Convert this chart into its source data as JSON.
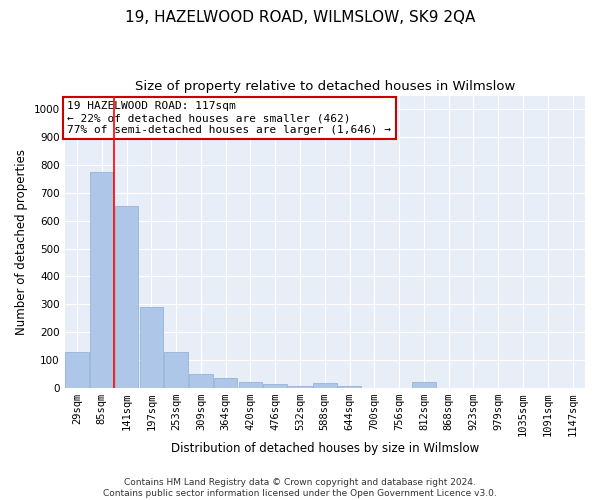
{
  "title": "19, HAZELWOOD ROAD, WILMSLOW, SK9 2QA",
  "subtitle": "Size of property relative to detached houses in Wilmslow",
  "xlabel": "Distribution of detached houses by size in Wilmslow",
  "ylabel": "Number of detached properties",
  "bar_color": "#aec6e8",
  "bar_edge_color": "#89afd4",
  "background_color": "#e8eef8",
  "grid_color": "#ffffff",
  "fig_color": "#ffffff",
  "categories": [
    "29sqm",
    "85sqm",
    "141sqm",
    "197sqm",
    "253sqm",
    "309sqm",
    "364sqm",
    "420sqm",
    "476sqm",
    "532sqm",
    "588sqm",
    "644sqm",
    "700sqm",
    "756sqm",
    "812sqm",
    "868sqm",
    "923sqm",
    "979sqm",
    "1035sqm",
    "1091sqm",
    "1147sqm"
  ],
  "values": [
    130,
    775,
    655,
    290,
    130,
    50,
    35,
    20,
    15,
    5,
    17,
    5,
    0,
    0,
    20,
    0,
    0,
    0,
    0,
    0,
    0
  ],
  "ylim": [
    0,
    1050
  ],
  "yticks": [
    0,
    100,
    200,
    300,
    400,
    500,
    600,
    700,
    800,
    900,
    1000
  ],
  "property_line_x": 1.5,
  "annotation_title": "19 HAZELWOOD ROAD: 117sqm",
  "annotation_line1": "← 22% of detached houses are smaller (462)",
  "annotation_line2": "77% of semi-detached houses are larger (1,646) →",
  "annotation_box_color": "#ffffff",
  "annotation_box_edge": "#cc0000",
  "footer_line1": "Contains HM Land Registry data © Crown copyright and database right 2024.",
  "footer_line2": "Contains public sector information licensed under the Open Government Licence v3.0.",
  "title_fontsize": 11,
  "subtitle_fontsize": 9.5,
  "axis_label_fontsize": 8.5,
  "tick_fontsize": 7.5,
  "annotation_fontsize": 8,
  "footer_fontsize": 6.5
}
